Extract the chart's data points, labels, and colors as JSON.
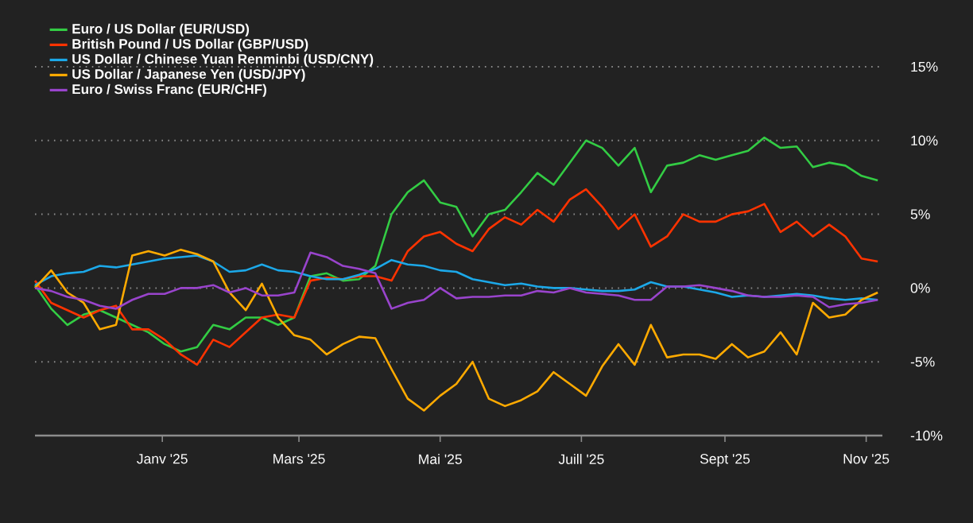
{
  "chart_data": {
    "type": "line",
    "x": [
      "2024-11-07",
      "2024-11-14",
      "2024-11-21",
      "2024-11-28",
      "2024-12-05",
      "2024-12-12",
      "2024-12-19",
      "2024-12-26",
      "2025-01-02",
      "2025-01-09",
      "2025-01-16",
      "2025-01-23",
      "2025-01-30",
      "2025-02-06",
      "2025-02-13",
      "2025-02-20",
      "2025-02-27",
      "2025-03-06",
      "2025-03-13",
      "2025-03-20",
      "2025-03-27",
      "2025-04-03",
      "2025-04-10",
      "2025-04-17",
      "2025-04-24",
      "2025-05-01",
      "2025-05-08",
      "2025-05-15",
      "2025-05-22",
      "2025-05-29",
      "2025-06-05",
      "2025-06-12",
      "2025-06-19",
      "2025-06-26",
      "2025-07-03",
      "2025-07-10",
      "2025-07-17",
      "2025-07-24",
      "2025-07-31",
      "2025-08-07",
      "2025-08-14",
      "2025-08-21",
      "2025-08-28",
      "2025-09-04",
      "2025-09-11",
      "2025-09-18",
      "2025-09-25",
      "2025-10-02",
      "2025-10-09",
      "2025-10-16",
      "2025-10-23",
      "2025-10-30",
      "2025-11-06"
    ],
    "series": [
      {
        "name": "Euro / US Dollar (EUR/USD)",
        "color": "#33cc44",
        "values": [
          0.2,
          -1.4,
          -2.5,
          -1.8,
          -1.5,
          -2,
          -2.5,
          -3,
          -3.8,
          -4.3,
          -4,
          -2.5,
          -2.8,
          -2,
          -2,
          -2.5,
          -2,
          0.8,
          1,
          0.5,
          0.6,
          1.5,
          5,
          6.5,
          7.3,
          5.8,
          5.5,
          3.5,
          5,
          5.3,
          6.5,
          7.8,
          7,
          8.5,
          10,
          9.5,
          8.3,
          9.5,
          6.5,
          8.3,
          8.5,
          9,
          8.7,
          9,
          9.3,
          10.2,
          9.5,
          9.6,
          8.2,
          8.5,
          8.3,
          7.6,
          7.3
        ]
      },
      {
        "name": "British Pound / US Dollar (GBP/USD)",
        "color": "#ff3300",
        "values": [
          0.5,
          -1,
          -1.5,
          -2,
          -1.5,
          -1.2,
          -2.8,
          -2.8,
          -3.5,
          -4.5,
          -5.2,
          -3.5,
          -4,
          -3,
          -2,
          -1.8,
          -2,
          0.5,
          0.7,
          0.6,
          0.8,
          0.8,
          0.5,
          2.5,
          3.5,
          3.8,
          3,
          2.5,
          4,
          4.8,
          4.3,
          5.3,
          4.5,
          6,
          6.7,
          5.5,
          4,
          5,
          2.8,
          3.5,
          5,
          4.5,
          4.5,
          5,
          5.2,
          5.7,
          3.8,
          4.5,
          3.5,
          4.3,
          3.5,
          2,
          1.8
        ]
      },
      {
        "name": "US Dollar / Chinese Yuan Renminbi (USD/CNY)",
        "color": "#1ca8e8",
        "values": [
          0.2,
          0.8,
          1,
          1.1,
          1.5,
          1.4,
          1.6,
          1.8,
          2,
          2.1,
          2.2,
          1.8,
          1.1,
          1.2,
          1.6,
          1.2,
          1.1,
          0.8,
          0.6,
          0.6,
          0.9,
          1.3,
          1.9,
          1.6,
          1.5,
          1.2,
          1.1,
          0.6,
          0.4,
          0.2,
          0.3,
          0.1,
          0,
          0,
          -0.1,
          -0.2,
          -0.2,
          -0.1,
          0.4,
          0.1,
          0.1,
          -0.1,
          -0.3,
          -0.6,
          -0.5,
          -0.6,
          -0.5,
          -0.4,
          -0.5,
          -0.7,
          -0.8,
          -0.7,
          -0.8
        ]
      },
      {
        "name": "US Dollar / Japanese Yen (USD/JPY)",
        "color": "#ffaa00",
        "values": [
          0,
          1.2,
          -0.3,
          -1,
          -2.8,
          -2.5,
          2.2,
          2.5,
          2.2,
          2.6,
          2.3,
          1.8,
          -0.3,
          -1.5,
          0.3,
          -2,
          -3.2,
          -3.5,
          -4.5,
          -3.8,
          -3.3,
          -3.4,
          -5.5,
          -7.5,
          -8.3,
          -7.3,
          -6.5,
          -5,
          -7.5,
          -8,
          -7.6,
          -7,
          -5.7,
          -6.5,
          -7.3,
          -5.3,
          -3.8,
          -5.2,
          -2.5,
          -4.7,
          -4.5,
          -4.5,
          -4.8,
          -3.8,
          -4.7,
          -4.3,
          -3,
          -4.5,
          -1,
          -2,
          -1.8,
          -0.8,
          -0.3
        ]
      },
      {
        "name": "Euro / Swiss Franc (EUR/CHF)",
        "color": "#9944cc",
        "values": [
          0,
          -0.2,
          -0.6,
          -0.8,
          -1.2,
          -1.4,
          -0.8,
          -0.4,
          -0.4,
          0,
          0,
          0.2,
          -0.3,
          0,
          -0.5,
          -0.5,
          -0.3,
          2.4,
          2.1,
          1.5,
          1.3,
          1,
          -1.4,
          -1,
          -0.8,
          0,
          -0.7,
          -0.6,
          -0.6,
          -0.5,
          -0.5,
          -0.2,
          -0.3,
          0,
          -0.3,
          -0.4,
          -0.5,
          -0.8,
          -0.8,
          0.1,
          0.1,
          0.2,
          0,
          -0.2,
          -0.5,
          -0.6,
          -0.6,
          -0.5,
          -0.6,
          -1.3,
          -1.1,
          -1,
          -0.8
        ]
      }
    ],
    "xlim": [
      "2024-11-07",
      "2025-11-08"
    ],
    "xticks": [
      {
        "value": "2025-01-01",
        "label": "Janv '25"
      },
      {
        "value": "2025-03-01",
        "label": "Mars '25"
      },
      {
        "value": "2025-05-01",
        "label": "Mai '25"
      },
      {
        "value": "2025-07-01",
        "label": "Juill '25"
      },
      {
        "value": "2025-09-01",
        "label": "Sept '25"
      },
      {
        "value": "2025-11-01",
        "label": "Nov '25"
      }
    ],
    "ylim": [
      -10,
      15
    ],
    "yticks": [
      {
        "value": -10,
        "label": "-10%"
      },
      {
        "value": -5,
        "label": "-5%"
      },
      {
        "value": 0,
        "label": "0%"
      },
      {
        "value": 5,
        "label": "5%"
      },
      {
        "value": 10,
        "label": "10%"
      },
      {
        "value": 15,
        "label": "15%"
      }
    ],
    "grid": "y",
    "legend": "top left",
    "marker": "none",
    "line_style": "solid"
  }
}
